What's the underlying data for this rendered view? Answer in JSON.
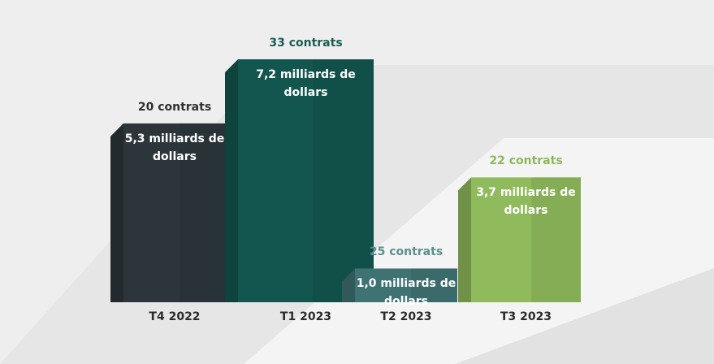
{
  "chart_data": {
    "type": "bar",
    "categories": [
      "T4 2022",
      "T1 2023",
      "T2 2023",
      "T3 2023"
    ],
    "values": [
      5.3,
      7.2,
      1.0,
      3.7
    ],
    "value_labels": [
      "5,3 milliards de dollars",
      "7,2 milliards de dollars",
      "1,0 milliards de dollars",
      "3,7 milliards de dollars"
    ],
    "count_labels": [
      "20 contrats",
      "33 contrats",
      "25 contrats",
      "22 contrats"
    ],
    "colors": [
      "#2c363a",
      "#12564f",
      "#3f7273",
      "#8fbb5c"
    ],
    "count_label_colors": [
      "#2f2f2f",
      "#1b5c55",
      "#5b8f8f",
      "#8cb85a"
    ]
  }
}
